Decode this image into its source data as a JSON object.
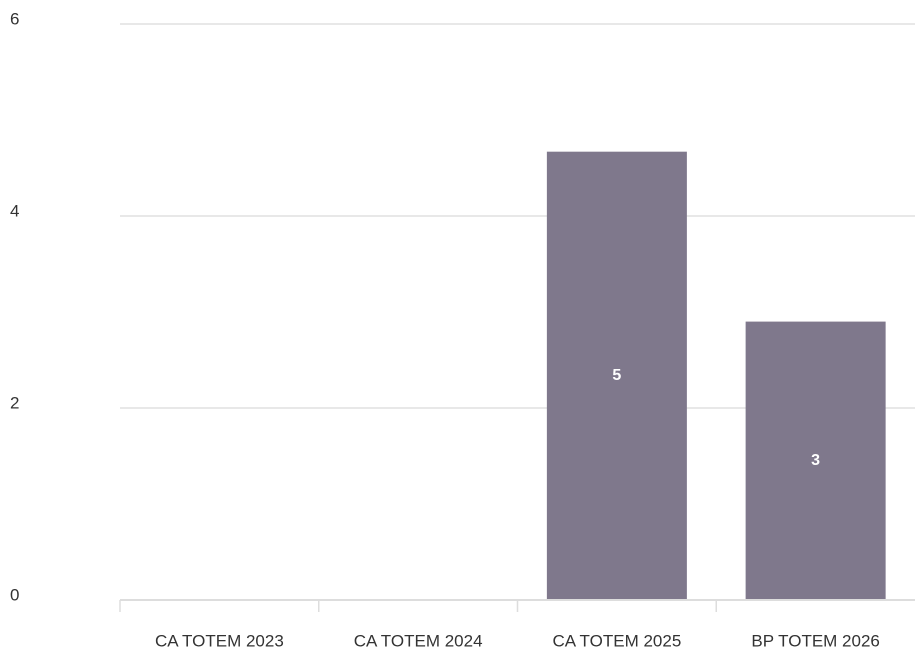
{
  "chart_data": {
    "type": "bar",
    "categories": [
      "CA TOTEM 2023",
      "CA TOTEM 2024",
      "CA TOTEM 2025",
      "BP TOTEM 2026"
    ],
    "values": [
      0,
      0,
      4.67,
      2.9
    ],
    "value_labels": [
      null,
      null,
      "5",
      "3"
    ],
    "color": "#7f788c",
    "ylim": [
      0,
      6
    ],
    "yticks": [
      0,
      2,
      4,
      6
    ],
    "grid": true
  }
}
